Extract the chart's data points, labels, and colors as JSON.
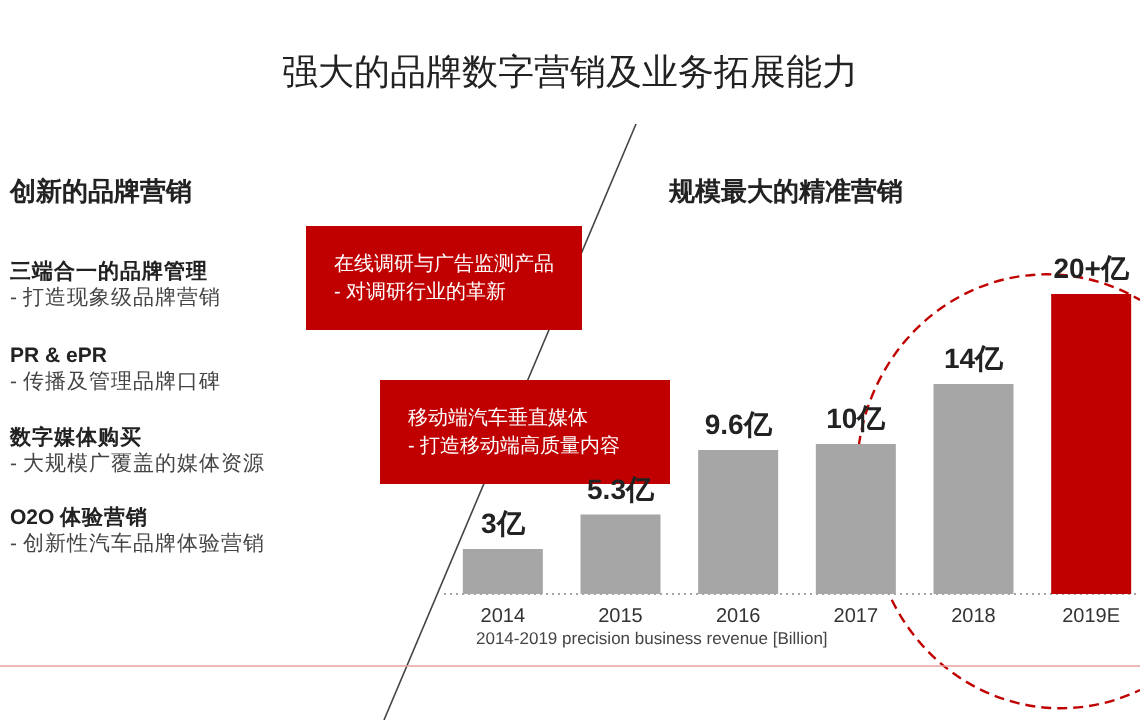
{
  "chart_data": {
    "type": "bar",
    "title": "强大的品牌数字营销及业务拓展能力",
    "subtitle": "规模最大的精准营销",
    "xlabel": "2014-2019 precision business revenue  [Billion]",
    "categories": [
      "2014",
      "2015",
      "2016",
      "2017",
      "2018",
      "2019E"
    ],
    "values": [
      3,
      5.3,
      9.6,
      10,
      14,
      20
    ],
    "value_labels": [
      "3亿",
      "5.3亿",
      "9.6亿",
      "10亿",
      "14亿",
      "20+亿"
    ],
    "colors": [
      "#a6a6a6",
      "#a6a6a6",
      "#a6a6a6",
      "#a6a6a6",
      "#a6a6a6",
      "#c00000"
    ],
    "annotations": [
      "创新的品牌营销",
      "三端合一的品牌管理",
      "- 打造现象级品牌营销",
      "PR & ePR",
      "- 传播及管理品牌口碑",
      "数字媒体购买",
      "- 大规模广覆盖的媒体资源",
      "O2O 体验营销",
      "- 创新性汽车品牌体验营销",
      "在线调研与广告监测产品",
      "- 对调研行业的革新",
      "移动端汽车垂直媒体",
      "- 打造移动端高质量内容"
    ]
  }
}
